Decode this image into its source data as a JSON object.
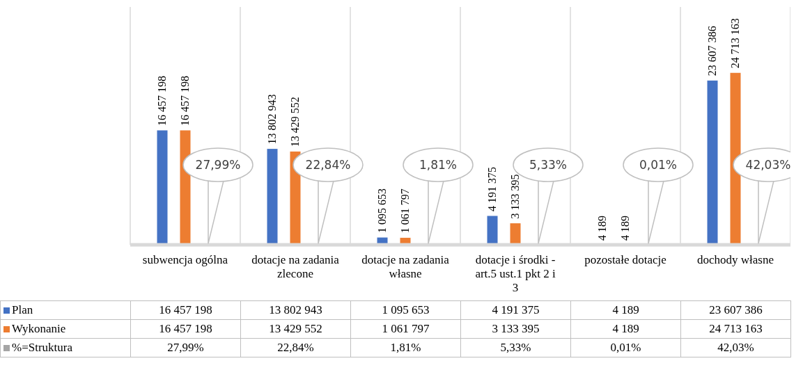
{
  "chart_data": {
    "type": "bar",
    "categories": [
      "subwencja ogólna",
      "dotacje na zadania zlecone",
      "dotacje na zadania własne",
      "dotacje i środki -art.5 ust.1 pkt 2 i 3",
      "pozostałe dotacje",
      "dochody własne"
    ],
    "series": [
      {
        "name": "Plan",
        "color": "#4472c4",
        "values": [
          16457198,
          13802943,
          1095653,
          4191375,
          4189,
          23607386
        ],
        "value_labels": [
          "16 457 198",
          "13 802 943",
          "1 095 653",
          "4 191 375",
          "4 189",
          "23 607 386"
        ]
      },
      {
        "name": "Wykonanie",
        "color": "#ed7d31",
        "values": [
          16457198,
          13429552,
          1061797,
          3133395,
          4189,
          24713163
        ],
        "value_labels": [
          "16 457 198",
          "13 429 552",
          "1 061 797",
          "3 133 395",
          "4 189",
          "24 713 163"
        ]
      },
      {
        "name": "%=Struktura",
        "color": "#a5a5a5",
        "values": [
          27.99,
          22.84,
          1.81,
          5.33,
          0.01,
          42.03
        ],
        "value_labels": [
          "27,99%",
          "22,84%",
          "1,81%",
          "5,33%",
          "0,01%",
          "42,03%"
        ]
      }
    ],
    "grid": "x",
    "legend": "bottom"
  }
}
